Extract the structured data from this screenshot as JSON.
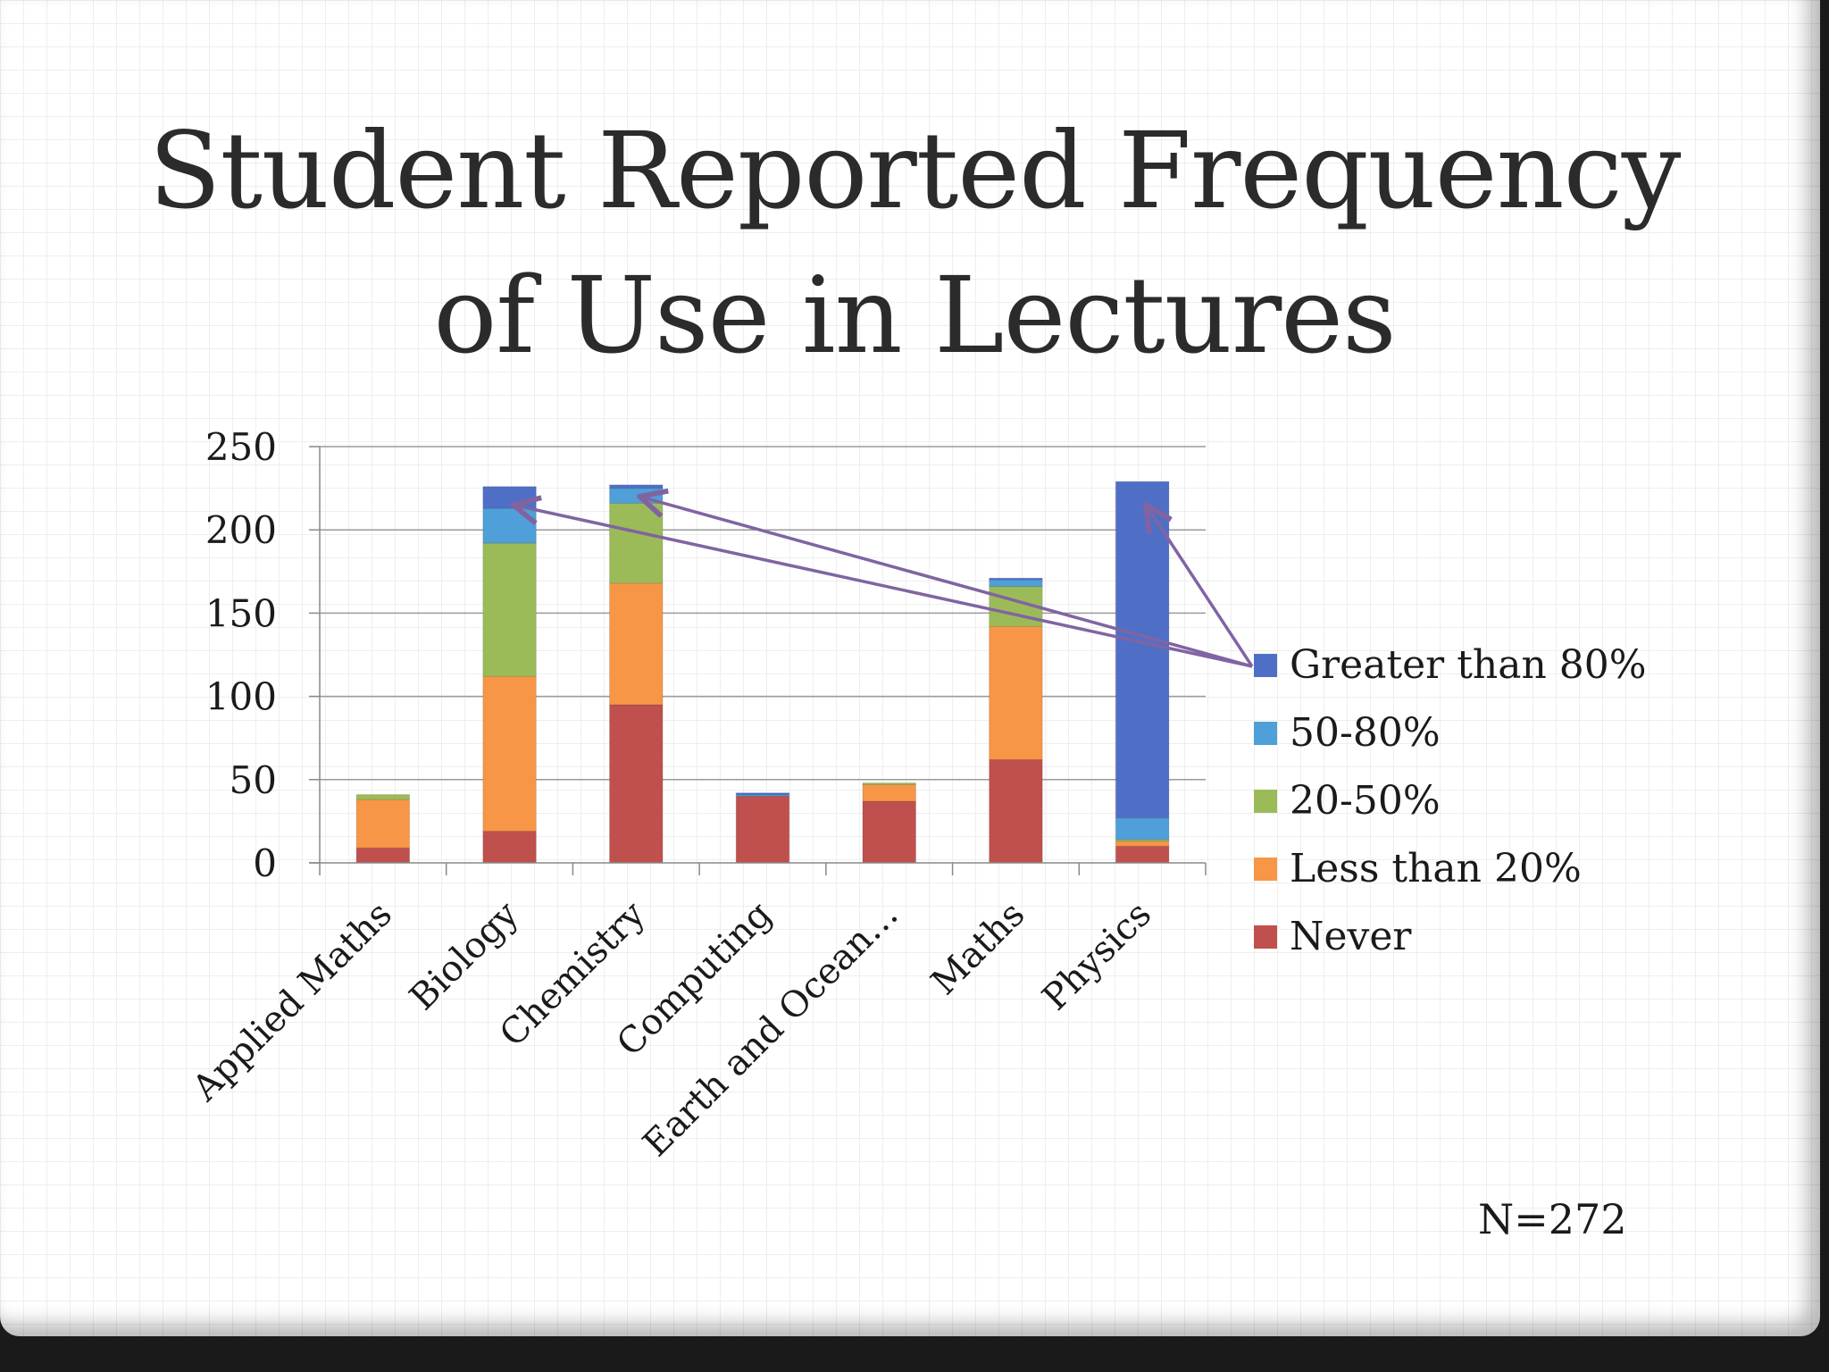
{
  "slide": {
    "title_line1": "Student Reported Frequency",
    "title_line2": "of Use in Lectures",
    "footnote": "N=272"
  },
  "chart_data": {
    "type": "bar",
    "stacked": true,
    "categories": [
      "Applied Maths",
      "Biology",
      "Chemistry",
      "Computing",
      "Earth and Ocean…",
      "Maths",
      "Physics"
    ],
    "series": [
      {
        "name": "Never",
        "color": "#c0504d",
        "values": [
          9,
          19,
          95,
          40,
          37,
          62,
          10
        ]
      },
      {
        "name": "Less than 20%",
        "color": "#f79646",
        "values": [
          29,
          93,
          73,
          0,
          10,
          80,
          3
        ]
      },
      {
        "name": "20-50%",
        "color": "#9bbb59",
        "values": [
          3,
          80,
          48,
          0,
          1,
          24,
          1
        ]
      },
      {
        "name": "50-80%",
        "color": "#4f9fd9",
        "values": [
          0,
          21,
          9,
          1,
          0,
          4,
          13
        ]
      },
      {
        "name": "Greater than 80%",
        "color": "#4f6fc7",
        "values": [
          0,
          13,
          2,
          1,
          0,
          1,
          202
        ]
      }
    ],
    "ylim": [
      0,
      250
    ],
    "yticks": [
      0,
      50,
      100,
      150,
      200,
      250
    ],
    "grid": true,
    "legend": "right",
    "legend_order": [
      "Greater than 80%",
      "50-80%",
      "20-50%",
      "Less than 20%",
      "Never"
    ],
    "annotations": [
      {
        "type": "arrow",
        "from": "legend:Greater than 80%",
        "to_category": "Biology",
        "to_value": 215
      },
      {
        "type": "arrow",
        "from": "legend:Greater than 80%",
        "to_category": "Chemistry",
        "to_value": 220
      },
      {
        "type": "arrow",
        "from": "legend:Greater than 80%",
        "to_category": "Physics",
        "to_value": 215
      }
    ],
    "annotation_color": "#8064a2"
  }
}
